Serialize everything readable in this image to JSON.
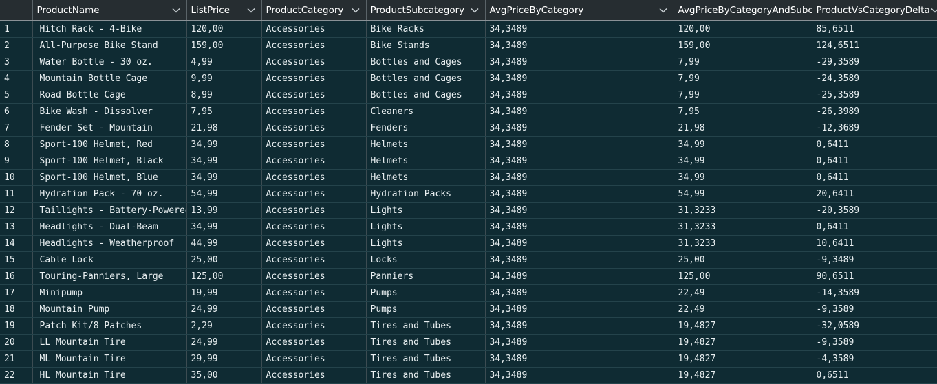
{
  "columns": [
    "ProductName",
    "ListPrice",
    "ProductCategory",
    "ProductSubcategory",
    "AvgPriceByCategory",
    "AvgPriceByCategoryAndSubcategory",
    "ProductVsCategoryDelta"
  ],
  "rows": [
    [
      "1",
      "Hitch Rack - 4-Bike",
      "120,00",
      "Accessories",
      "Bike Racks",
      "34,3489",
      "120,00",
      "85,6511"
    ],
    [
      "2",
      "All-Purpose Bike Stand",
      "159,00",
      "Accessories",
      "Bike Stands",
      "34,3489",
      "159,00",
      "124,6511"
    ],
    [
      "3",
      "Water Bottle - 30 oz.",
      "4,99",
      "Accessories",
      "Bottles and Cages",
      "34,3489",
      "7,99",
      "-29,3589"
    ],
    [
      "4",
      "Mountain Bottle Cage",
      "9,99",
      "Accessories",
      "Bottles and Cages",
      "34,3489",
      "7,99",
      "-24,3589"
    ],
    [
      "5",
      "Road Bottle Cage",
      "8,99",
      "Accessories",
      "Bottles and Cages",
      "34,3489",
      "7,99",
      "-25,3589"
    ],
    [
      "6",
      "Bike Wash - Dissolver",
      "7,95",
      "Accessories",
      "Cleaners",
      "34,3489",
      "7,95",
      "-26,3989"
    ],
    [
      "7",
      "Fender Set - Mountain",
      "21,98",
      "Accessories",
      "Fenders",
      "34,3489",
      "21,98",
      "-12,3689"
    ],
    [
      "8",
      "Sport-100 Helmet, Red",
      "34,99",
      "Accessories",
      "Helmets",
      "34,3489",
      "34,99",
      "0,6411"
    ],
    [
      "9",
      "Sport-100 Helmet, Black",
      "34,99",
      "Accessories",
      "Helmets",
      "34,3489",
      "34,99",
      "0,6411"
    ],
    [
      "10",
      "Sport-100 Helmet, Blue",
      "34,99",
      "Accessories",
      "Helmets",
      "34,3489",
      "34,99",
      "0,6411"
    ],
    [
      "11",
      "Hydration Pack - 70 oz.",
      "54,99",
      "Accessories",
      "Hydration Packs",
      "34,3489",
      "54,99",
      "20,6411"
    ],
    [
      "12",
      "Taillights - Battery-Powered",
      "13,99",
      "Accessories",
      "Lights",
      "34,3489",
      "31,3233",
      "-20,3589"
    ],
    [
      "13",
      "Headlights - Dual-Beam",
      "34,99",
      "Accessories",
      "Lights",
      "34,3489",
      "31,3233",
      "0,6411"
    ],
    [
      "14",
      "Headlights - Weatherproof",
      "44,99",
      "Accessories",
      "Lights",
      "34,3489",
      "31,3233",
      "10,6411"
    ],
    [
      "15",
      "Cable Lock",
      "25,00",
      "Accessories",
      "Locks",
      "34,3489",
      "25,00",
      "-9,3489"
    ],
    [
      "16",
      "Touring-Panniers, Large",
      "125,00",
      "Accessories",
      "Panniers",
      "34,3489",
      "125,00",
      "90,6511"
    ],
    [
      "17",
      "Minipump",
      "19,99",
      "Accessories",
      "Pumps",
      "34,3489",
      "22,49",
      "-14,3589"
    ],
    [
      "18",
      "Mountain Pump",
      "24,99",
      "Accessories",
      "Pumps",
      "34,3489",
      "22,49",
      "-9,3589"
    ],
    [
      "19",
      "Patch Kit/8 Patches",
      "2,29",
      "Accessories",
      "Tires and Tubes",
      "34,3489",
      "19,4827",
      "-32,0589"
    ],
    [
      "20",
      "LL Mountain Tire",
      "24,99",
      "Accessories",
      "Tires and Tubes",
      "34,3489",
      "19,4827",
      "-9,3589"
    ],
    [
      "21",
      "ML Mountain Tire",
      "29,99",
      "Accessories",
      "Tires and Tubes",
      "34,3489",
      "19,4827",
      "-4,3589"
    ],
    [
      "22",
      "HL Mountain Tire",
      "35,00",
      "Accessories",
      "Tires and Tubes",
      "34,3489",
      "19,4827",
      "0,6511"
    ]
  ],
  "icons": {
    "column_menu": "chevron-down-icon"
  },
  "colors": {
    "background": "#0f2b33",
    "header_background": "#262d31",
    "text": "#e9eff1"
  }
}
